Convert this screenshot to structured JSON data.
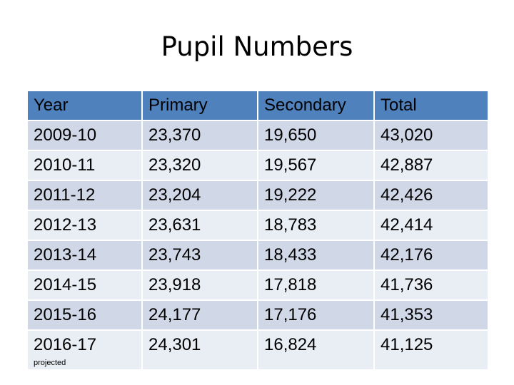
{
  "title": "Pupil Numbers",
  "table": {
    "headers": [
      "Year",
      "Primary",
      "Secondary",
      "Total"
    ],
    "rows": [
      [
        "2009-10",
        "23,370",
        "19,650",
        "43,020"
      ],
      [
        "2010-11",
        "23,320",
        "19,567",
        "42,887"
      ],
      [
        "2011-12",
        "23,204",
        "19,222",
        "42,426"
      ],
      [
        "2012-13",
        "23,631",
        "18,783",
        "42,414"
      ],
      [
        "2013-14",
        "23,743",
        "18,433",
        "42,176"
      ],
      [
        "2014-15",
        "23,918",
        "17,818",
        "41,736"
      ],
      [
        "2015-16",
        "24,177",
        "17,176",
        "41,353"
      ],
      [
        "2016-17",
        "24,301",
        "16,824",
        "41,125"
      ]
    ],
    "note": "projected"
  }
}
